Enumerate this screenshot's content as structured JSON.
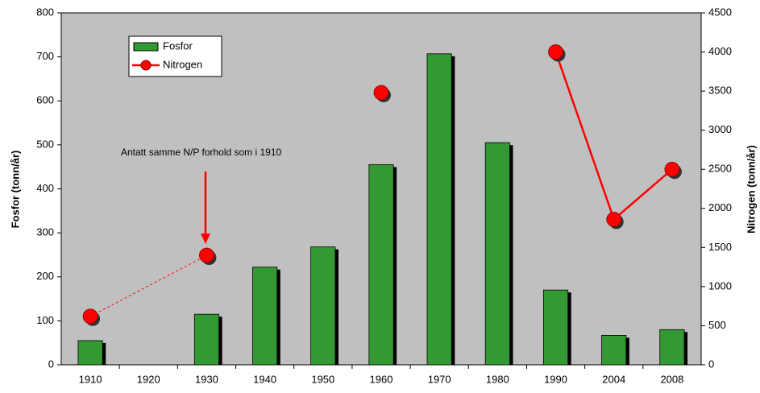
{
  "chart_data": {
    "type": "bar_line",
    "categories": [
      "1910",
      "1920",
      "1930",
      "1940",
      "1950",
      "1960",
      "1970",
      "1980",
      "1990",
      "2004",
      "2008"
    ],
    "series": [
      {
        "name": "Fosfor",
        "type": "bar",
        "color": "#339933",
        "values": [
          55,
          null,
          115,
          222,
          268,
          455,
          707,
          505,
          170,
          67,
          80
        ]
      },
      {
        "name": "Nitrogen",
        "type": "line",
        "axis": "y2",
        "color": "#ff0000",
        "values": [
          620,
          null,
          1400,
          null,
          null,
          3480,
          null,
          null,
          4000,
          1860,
          2500
        ]
      }
    ],
    "ylabel": "Fosfor (tonn/år)",
    "y2label": "Nitrogen (tonn/år)",
    "ylim": [
      0,
      800
    ],
    "yticks": [
      0,
      100,
      200,
      300,
      400,
      500,
      600,
      700,
      800
    ],
    "y2lim": [
      0,
      4500
    ],
    "y2ticks": [
      0,
      500,
      1000,
      1500,
      2000,
      2500,
      3000,
      3500,
      4000,
      4500
    ],
    "annotation": "Antatt samme N/P forhold som i 1910",
    "dashed_segment": [
      0,
      2
    ],
    "legend": "upper left",
    "background": "#c0c0c0"
  }
}
